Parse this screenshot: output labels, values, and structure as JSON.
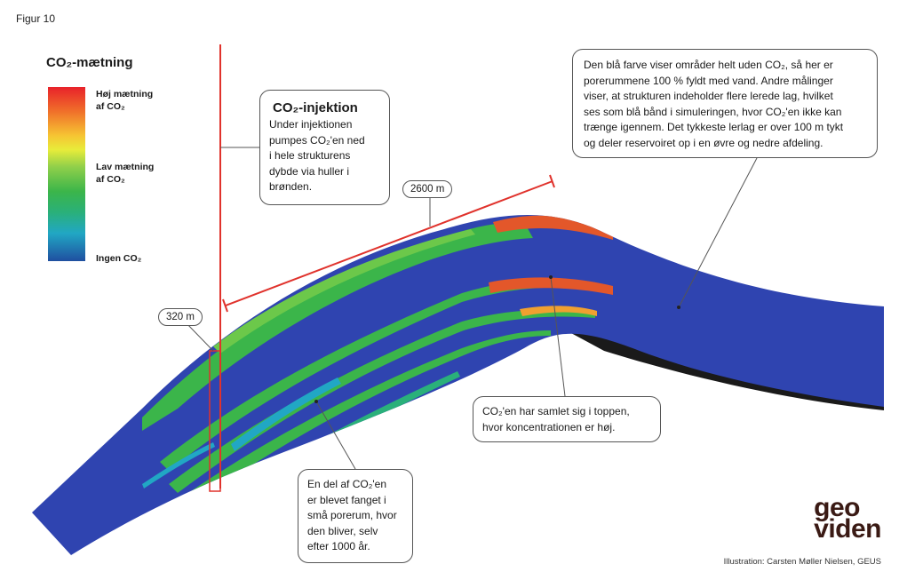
{
  "figure_label": "Figur 10",
  "legend": {
    "title": "CO₂-mætning",
    "high_line1": "Høj mætning",
    "high_line2": "af CO₂",
    "low_line1": "Lav mætning",
    "low_line2": "af CO₂",
    "none": "Ingen CO₂"
  },
  "injection": {
    "title": "CO₂-injektion",
    "text": [
      "Under injektionen",
      "pumpes CO₂'en ned",
      "i hele strukturens",
      "dybde via huller i",
      "brønden."
    ]
  },
  "measurements": {
    "depth": "320 m",
    "length": "2600 m"
  },
  "callout_blue": {
    "text": [
      "Den blå farve viser områder helt uden CO₂, så her er",
      "porerummene 100 % fyldt med vand. Andre målinger",
      "viser, at strukturen indeholder flere lerede lag, hvilket",
      "ses som blå bånd i simuleringen, hvor CO₂'en ikke kan",
      "trænge igennem. Det tykkeste lerlag er over 100 m tykt",
      "og deler reservoiret op i en øvre og nedre afdeling."
    ]
  },
  "callout_top": {
    "text": [
      "CO₂'en har samlet sig i toppen,",
      "hvor koncentrationen er høj."
    ]
  },
  "callout_trapped": {
    "text": [
      "En del af CO₂'en",
      "er blevet fanget i",
      "små porerum, hvor",
      "den bliver, selv",
      "efter 1000 år."
    ]
  },
  "logo": {
    "line1": "geo",
    "line2": "viden"
  },
  "credit": "Illustration: Carsten Møller Nielsen, GEUS",
  "colors": {
    "water": "#2f44b0",
    "low": "#3bb54a",
    "high": "#e3572a",
    "well": "#e0322c"
  }
}
